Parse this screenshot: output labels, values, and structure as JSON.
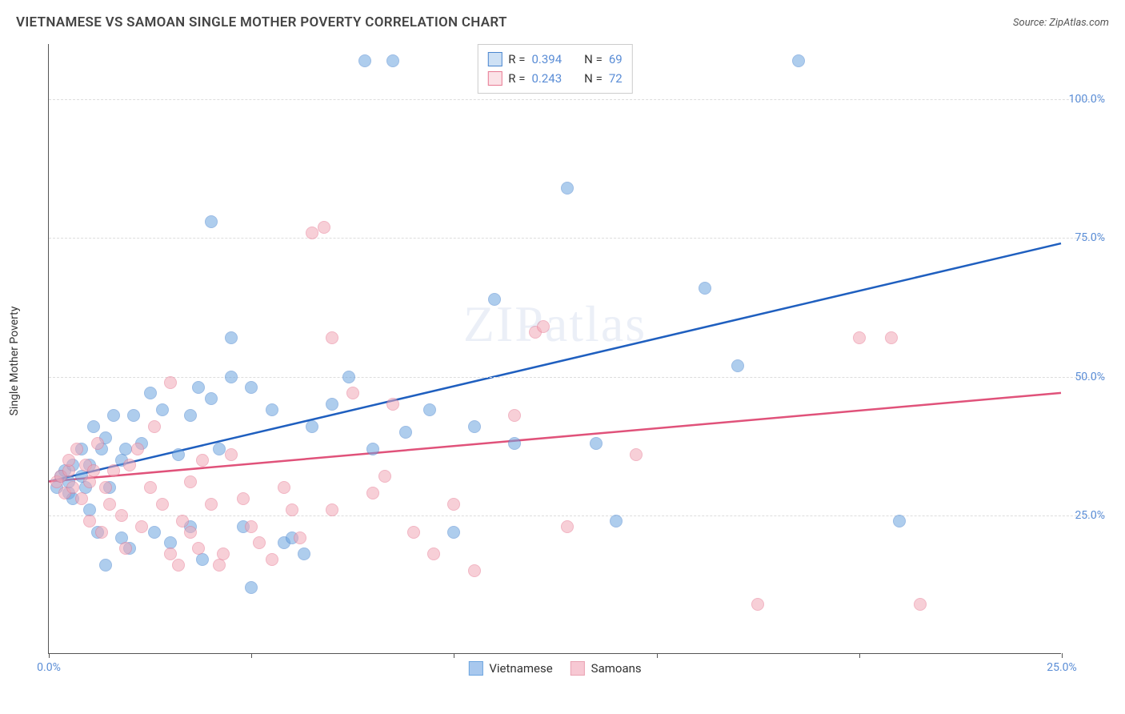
{
  "title": "VIETNAMESE VS SAMOAN SINGLE MOTHER POVERTY CORRELATION CHART",
  "source": "Source: ZipAtlas.com",
  "watermark": "ZIPatlas",
  "y_axis_title": "Single Mother Poverty",
  "chart": {
    "type": "scatter",
    "xlim": [
      0,
      25
    ],
    "ylim": [
      0,
      110
    ],
    "x_ticks": [
      0,
      5,
      10,
      15,
      20,
      25
    ],
    "y_gridlines": [
      25,
      50,
      75,
      100
    ],
    "x_tick_labels": {
      "0": "0.0%",
      "25": "25.0%"
    },
    "y_tick_labels": {
      "25": "25.0%",
      "50": "50.0%",
      "75": "75.0%",
      "100": "100.0%"
    },
    "background_color": "#ffffff",
    "grid_color": "#dddddd",
    "axis_color": "#555555",
    "marker_radius": 8,
    "marker_opacity": 0.55,
    "marker_stroke_opacity": 0.9
  },
  "series": [
    {
      "name": "Vietnamese",
      "color": "#6da5e0",
      "stroke": "#4a86cf",
      "line_color": "#1f5fbf",
      "R": "0.394",
      "N": "69",
      "trend": {
        "x1": 0,
        "y1": 31,
        "x2": 25,
        "y2": 74
      },
      "points": [
        [
          0.2,
          30
        ],
        [
          0.3,
          32
        ],
        [
          0.4,
          33
        ],
        [
          0.5,
          29
        ],
        [
          0.5,
          31
        ],
        [
          0.6,
          34
        ],
        [
          0.6,
          28
        ],
        [
          0.8,
          37
        ],
        [
          0.8,
          32
        ],
        [
          0.9,
          30
        ],
        [
          1.0,
          34
        ],
        [
          1.0,
          26
        ],
        [
          1.1,
          41
        ],
        [
          1.2,
          22
        ],
        [
          1.3,
          37
        ],
        [
          1.4,
          39
        ],
        [
          1.4,
          16
        ],
        [
          1.5,
          30
        ],
        [
          1.6,
          43
        ],
        [
          1.8,
          21
        ],
        [
          1.8,
          35
        ],
        [
          1.9,
          37
        ],
        [
          2.0,
          19
        ],
        [
          2.1,
          43
        ],
        [
          2.3,
          38
        ],
        [
          2.5,
          47
        ],
        [
          2.6,
          22
        ],
        [
          2.8,
          44
        ],
        [
          3.0,
          20
        ],
        [
          3.2,
          36
        ],
        [
          3.5,
          43
        ],
        [
          3.5,
          23
        ],
        [
          3.7,
          48
        ],
        [
          3.8,
          17
        ],
        [
          4.0,
          46
        ],
        [
          4.0,
          78
        ],
        [
          4.2,
          37
        ],
        [
          4.5,
          50
        ],
        [
          4.5,
          57
        ],
        [
          4.8,
          23
        ],
        [
          5.0,
          48
        ],
        [
          5.0,
          12
        ],
        [
          5.5,
          44
        ],
        [
          5.8,
          20
        ],
        [
          6.0,
          21
        ],
        [
          6.3,
          18
        ],
        [
          6.5,
          41
        ],
        [
          7.0,
          45
        ],
        [
          7.4,
          50
        ],
        [
          7.8,
          107
        ],
        [
          8.0,
          37
        ],
        [
          8.5,
          107
        ],
        [
          8.8,
          40
        ],
        [
          9.4,
          44
        ],
        [
          10.0,
          22
        ],
        [
          10.5,
          41
        ],
        [
          11.0,
          64
        ],
        [
          11.5,
          38
        ],
        [
          12.8,
          84
        ],
        [
          13.5,
          38
        ],
        [
          14.0,
          24
        ],
        [
          16.2,
          66
        ],
        [
          17.0,
          52
        ],
        [
          18.5,
          107
        ],
        [
          21.0,
          24
        ]
      ]
    },
    {
      "name": "Samoans",
      "color": "#f2a9b8",
      "stroke": "#e77a93",
      "line_color": "#e0527a",
      "R": "0.243",
      "N": "72",
      "trend": {
        "x1": 0,
        "y1": 31,
        "x2": 25,
        "y2": 47
      },
      "points": [
        [
          0.2,
          31
        ],
        [
          0.3,
          32
        ],
        [
          0.4,
          29
        ],
        [
          0.5,
          33
        ],
        [
          0.5,
          35
        ],
        [
          0.6,
          30
        ],
        [
          0.7,
          37
        ],
        [
          0.8,
          28
        ],
        [
          0.9,
          34
        ],
        [
          1.0,
          31
        ],
        [
          1.0,
          24
        ],
        [
          1.1,
          33
        ],
        [
          1.2,
          38
        ],
        [
          1.3,
          22
        ],
        [
          1.4,
          30
        ],
        [
          1.5,
          27
        ],
        [
          1.6,
          33
        ],
        [
          1.8,
          25
        ],
        [
          1.9,
          19
        ],
        [
          2.0,
          34
        ],
        [
          2.2,
          37
        ],
        [
          2.3,
          23
        ],
        [
          2.5,
          30
        ],
        [
          2.6,
          41
        ],
        [
          2.8,
          27
        ],
        [
          3.0,
          49
        ],
        [
          3.0,
          18
        ],
        [
          3.2,
          16
        ],
        [
          3.3,
          24
        ],
        [
          3.5,
          31
        ],
        [
          3.5,
          22
        ],
        [
          3.7,
          19
        ],
        [
          3.8,
          35
        ],
        [
          4.0,
          27
        ],
        [
          4.2,
          16
        ],
        [
          4.3,
          18
        ],
        [
          4.5,
          36
        ],
        [
          4.8,
          28
        ],
        [
          5.0,
          23
        ],
        [
          5.2,
          20
        ],
        [
          5.5,
          17
        ],
        [
          5.8,
          30
        ],
        [
          6.0,
          26
        ],
        [
          6.2,
          21
        ],
        [
          6.5,
          76
        ],
        [
          6.8,
          77
        ],
        [
          7.0,
          57
        ],
        [
          7.0,
          26
        ],
        [
          7.5,
          47
        ],
        [
          8.0,
          29
        ],
        [
          8.3,
          32
        ],
        [
          8.5,
          45
        ],
        [
          9.0,
          22
        ],
        [
          9.5,
          18
        ],
        [
          10.0,
          27
        ],
        [
          10.5,
          15
        ],
        [
          11.5,
          43
        ],
        [
          12.0,
          58
        ],
        [
          12.2,
          59
        ],
        [
          12.8,
          23
        ],
        [
          14.5,
          36
        ],
        [
          17.5,
          9
        ],
        [
          20.0,
          57
        ],
        [
          20.8,
          57
        ],
        [
          21.5,
          9
        ]
      ]
    }
  ],
  "legend_top": {
    "R_label": "R =",
    "N_label": "N ="
  },
  "legend_bottom": [
    {
      "label": "Vietnamese",
      "fill": "#a8c8ee",
      "stroke": "#6da5e0"
    },
    {
      "label": "Samoans",
      "fill": "#f7c8d3",
      "stroke": "#e9a3b3"
    }
  ]
}
